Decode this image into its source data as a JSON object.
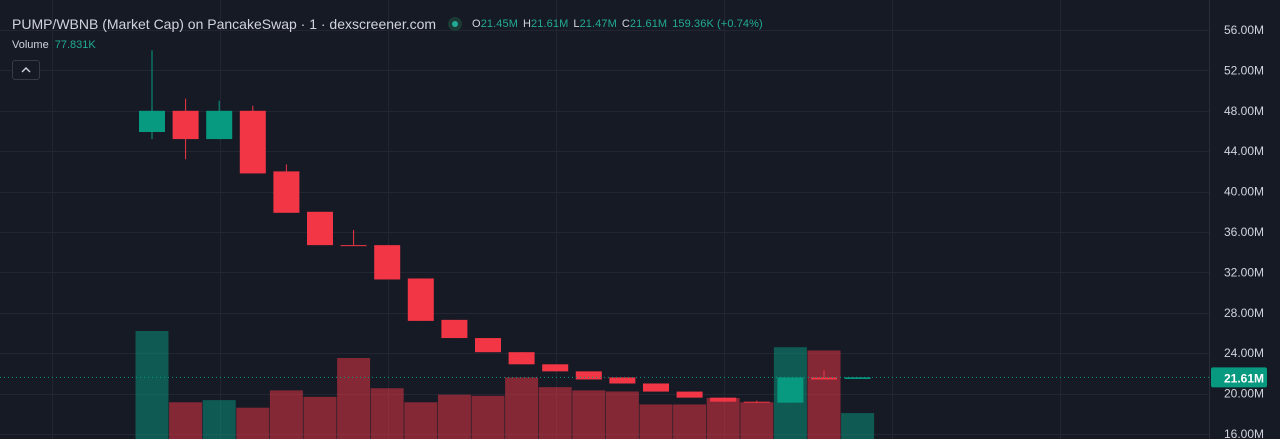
{
  "header": {
    "title": "PUMP/WBNB (Market Cap) on PancakeSwap · 1 · dexscreener.com",
    "ohlc": {
      "o_label": "O",
      "o_value": "21.45M",
      "h_label": "H",
      "h_value": "21.61M",
      "l_label": "L",
      "l_value": "21.47M",
      "c_label": "C",
      "c_value": "21.61M",
      "change": "159.36K (+0.74%)"
    },
    "volume_label": "Volume",
    "volume_value": "77.831K",
    "status_icon": "live-status-dot-icon",
    "collapse_icon": "chevron-up-icon"
  },
  "colors": {
    "background": "#161a25",
    "grid": "#232632",
    "up": "#089981",
    "down": "#f23645",
    "price_tag": "#089981",
    "axis_text": "#d1d4dc"
  },
  "chart_data": {
    "type": "candlestick",
    "y_unit": "USD market cap",
    "ylim": [
      16,
      56
    ],
    "y_ticks": [
      "56.00M",
      "52.00M",
      "48.00M",
      "44.00M",
      "40.00M",
      "36.00M",
      "32.00M",
      "28.00M",
      "24.00M",
      "20.00M",
      "16.00M"
    ],
    "y_tick_values": [
      56,
      52,
      48,
      44,
      40,
      36,
      32,
      28,
      24,
      20,
      16
    ],
    "current_price_label": "21.61M",
    "current_price": 21.61,
    "grid": true,
    "candles": [
      {
        "o": 45.9,
        "h": 54.0,
        "l": 45.2,
        "c": 48.0
      },
      {
        "o": 48.0,
        "h": 49.2,
        "l": 43.2,
        "c": 45.2
      },
      {
        "o": 45.2,
        "h": 49.0,
        "l": 45.2,
        "c": 48.0
      },
      {
        "o": 48.0,
        "h": 48.5,
        "l": 41.8,
        "c": 41.8
      },
      {
        "o": 42.0,
        "h": 42.7,
        "l": 37.9,
        "c": 37.9
      },
      {
        "o": 38.0,
        "h": 38.0,
        "l": 34.7,
        "c": 34.7
      },
      {
        "o": 34.7,
        "h": 36.2,
        "l": 34.7,
        "c": 34.6
      },
      {
        "o": 34.7,
        "h": 34.7,
        "l": 31.3,
        "c": 31.3
      },
      {
        "o": 31.4,
        "h": 31.4,
        "l": 27.2,
        "c": 27.2
      },
      {
        "o": 27.3,
        "h": 27.3,
        "l": 25.5,
        "c": 25.5
      },
      {
        "o": 25.5,
        "h": 25.5,
        "l": 24.1,
        "c": 24.1
      },
      {
        "o": 24.1,
        "h": 24.1,
        "l": 22.9,
        "c": 22.9
      },
      {
        "o": 22.9,
        "h": 22.9,
        "l": 22.2,
        "c": 22.2
      },
      {
        "o": 22.2,
        "h": 22.2,
        "l": 21.4,
        "c": 21.4
      },
      {
        "o": 21.6,
        "h": 21.6,
        "l": 21.0,
        "c": 21.0
      },
      {
        "o": 21.0,
        "h": 21.0,
        "l": 20.2,
        "c": 20.2
      },
      {
        "o": 20.2,
        "h": 20.2,
        "l": 19.6,
        "c": 19.6
      },
      {
        "o": 19.6,
        "h": 19.6,
        "l": 19.2,
        "c": 19.2
      },
      {
        "o": 19.2,
        "h": 19.3,
        "l": 19.1,
        "c": 19.1
      },
      {
        "o": 19.1,
        "h": 21.6,
        "l": 19.1,
        "c": 21.6
      },
      {
        "o": 21.6,
        "h": 22.3,
        "l": 21.4,
        "c": 21.4
      },
      {
        "o": 21.45,
        "h": 21.61,
        "l": 21.47,
        "c": 21.61
      }
    ],
    "volume": [
      {
        "v": 1.0,
        "dir": "up"
      },
      {
        "v": 0.34,
        "dir": "down"
      },
      {
        "v": 0.36,
        "dir": "up"
      },
      {
        "v": 0.29,
        "dir": "down"
      },
      {
        "v": 0.45,
        "dir": "down"
      },
      {
        "v": 0.39,
        "dir": "down"
      },
      {
        "v": 0.75,
        "dir": "down"
      },
      {
        "v": 0.47,
        "dir": "down"
      },
      {
        "v": 0.34,
        "dir": "down"
      },
      {
        "v": 0.41,
        "dir": "down"
      },
      {
        "v": 0.4,
        "dir": "down"
      },
      {
        "v": 0.57,
        "dir": "down"
      },
      {
        "v": 0.48,
        "dir": "down"
      },
      {
        "v": 0.45,
        "dir": "down"
      },
      {
        "v": 0.44,
        "dir": "down"
      },
      {
        "v": 0.32,
        "dir": "down"
      },
      {
        "v": 0.32,
        "dir": "down"
      },
      {
        "v": 0.38,
        "dir": "down"
      },
      {
        "v": 0.34,
        "dir": "down"
      },
      {
        "v": 0.85,
        "dir": "up"
      },
      {
        "v": 0.82,
        "dir": "down"
      },
      {
        "v": 0.24,
        "dir": "up"
      }
    ]
  }
}
